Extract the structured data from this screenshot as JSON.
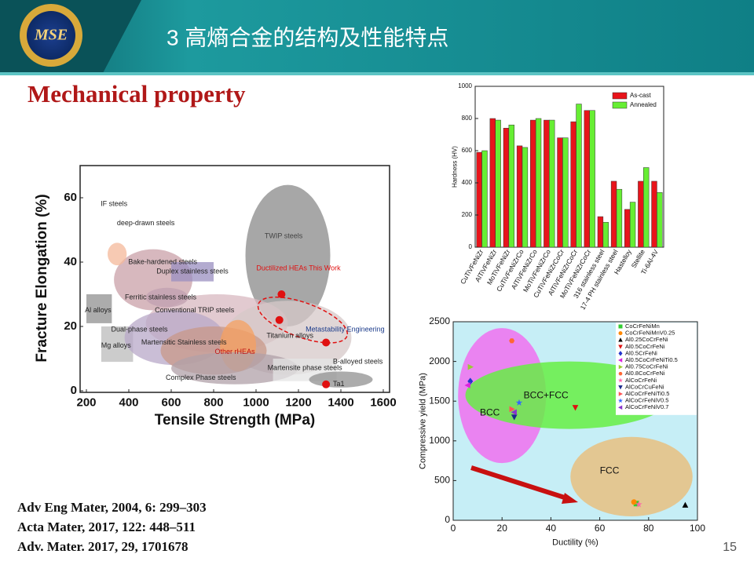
{
  "header": {
    "logo": "MSE",
    "title": "3 高熵合金的结构及性能特点"
  },
  "subtitle": "Mechanical property",
  "references": [
    "Adv Eng Mater, 2004, 6: 299–303",
    "Acta Mater, 2017, 122: 448–511",
    "Adv. Mater. 2017, 29, 1701678"
  ],
  "page_number": "15",
  "chart_data": [
    {
      "type": "region-map",
      "xlabel": "Tensile Strength (MPa)",
      "ylabel": "Fracture Elongation (%)",
      "xlim": [
        200,
        1600
      ],
      "xticks": [
        200,
        400,
        600,
        800,
        1000,
        1200,
        1400,
        1600
      ],
      "ylim": [
        0,
        70
      ],
      "yticks": [
        0,
        20,
        40,
        60
      ],
      "regions": [
        {
          "shape": "ellipse",
          "x": [
            950,
            1350
          ],
          "y": [
            20,
            64
          ],
          "color": "#8a8a8a"
        },
        {
          "shape": "ellipse",
          "x": [
            330,
            700
          ],
          "y": [
            25,
            44
          ],
          "color": "#c9a0a8"
        },
        {
          "shape": "ellipse",
          "x": [
            300,
            390
          ],
          "y": [
            39,
            46
          ],
          "color": "#f4b89a"
        },
        {
          "shape": "ellipse",
          "x": [
            480,
            1150
          ],
          "y": [
            12,
            30
          ],
          "color": "#d8b8c0"
        },
        {
          "shape": "ellipse",
          "x": [
            480,
            680
          ],
          "y": [
            26,
            32
          ],
          "color": "#c0a0b0"
        },
        {
          "shape": "rect",
          "x": [
            600,
            800
          ],
          "y": [
            34,
            40
          ],
          "color": "#9a8fc0"
        },
        {
          "shape": "rect",
          "x": [
            200,
            320
          ],
          "y": [
            21,
            30
          ],
          "color": "#909090"
        },
        {
          "shape": "rect",
          "x": [
            270,
            420
          ],
          "y": [
            9,
            20
          ],
          "color": "#bbbbbb"
        },
        {
          "shape": "ellipse",
          "x": [
            380,
            850
          ],
          "y": [
            8,
            25
          ],
          "color": "#b8a8c8"
        },
        {
          "shape": "ellipse",
          "x": [
            850,
            1450
          ],
          "y": [
            5,
            28
          ],
          "color": "#d6c8c8"
        },
        {
          "shape": "ellipse",
          "x": [
            550,
            1050
          ],
          "y": [
            5,
            20
          ],
          "color": "#c89888"
        },
        {
          "shape": "ellipse",
          "x": [
            830,
            1000
          ],
          "y": [
            6,
            22
          ],
          "color": "#f5a060"
        },
        {
          "shape": "ellipse",
          "x": [
            600,
            1200
          ],
          "y": [
            2,
            12
          ],
          "color": "#b0a0a8"
        },
        {
          "shape": "rect",
          "x": [
            1080,
            1380
          ],
          "y": [
            3,
            10
          ],
          "color": "#e4e4e4"
        },
        {
          "shape": "ellipse",
          "x": [
            1250,
            1550
          ],
          "y": [
            1,
            6
          ],
          "color": "#909090"
        }
      ],
      "points": {
        "x": [
          1120,
          1110,
          1330,
          1330
        ],
        "y": [
          30,
          22,
          15,
          2
        ],
        "color": "#e01010"
      },
      "annotations": [
        {
          "text": "IF steels",
          "x": 330,
          "y": 58,
          "color": "#222"
        },
        {
          "text": "deep-drawn steels",
          "x": 480,
          "y": 52,
          "color": "#222"
        },
        {
          "text": "Bake-hardened steels",
          "x": 560,
          "y": 40,
          "color": "#222"
        },
        {
          "text": "Duplex stainless steels",
          "x": 700,
          "y": 37,
          "color": "#222"
        },
        {
          "text": "Ferritic stainless steels",
          "x": 550,
          "y": 29,
          "color": "#222"
        },
        {
          "text": "Al alloys",
          "x": 255,
          "y": 25,
          "color": "#222"
        },
        {
          "text": "Mg alloys",
          "x": 340,
          "y": 14,
          "color": "#222"
        },
        {
          "text": "Conventional TRIP steels",
          "x": 710,
          "y": 25,
          "color": "#222"
        },
        {
          "text": "Dual-phase steels",
          "x": 450,
          "y": 19,
          "color": "#222"
        },
        {
          "text": "Martensitic Stainless steels",
          "x": 660,
          "y": 15,
          "color": "#222"
        },
        {
          "text": "Other rHEAs",
          "x": 900,
          "y": 12,
          "color": "#c01010"
        },
        {
          "text": "Titanium alloys",
          "x": 1160,
          "y": 17,
          "color": "#222"
        },
        {
          "text": "TWIP steels",
          "x": 1130,
          "y": 48,
          "color": "#444"
        },
        {
          "text": "Ductilized HEAs This Work",
          "x": 1200,
          "y": 38,
          "color": "#e01010"
        },
        {
          "text": "Metastability Engineering",
          "x": 1420,
          "y": 19,
          "color": "#1a3a8a"
        },
        {
          "text": "Complex Phase steels",
          "x": 740,
          "y": 4,
          "color": "#222"
        },
        {
          "text": "Martensite phase steels",
          "x": 1230,
          "y": 7,
          "color": "#222"
        },
        {
          "text": "B-alloyed steels",
          "x": 1480,
          "y": 9,
          "color": "#222"
        },
        {
          "text": "Ta1",
          "x": 1390,
          "y": 2,
          "color": "#222"
        }
      ]
    },
    {
      "type": "bar",
      "ylabel": "Hardness (HV)",
      "categories": [
        "CuTiVFeNiZr",
        "AlTiVFeNiZr",
        "MoTiVFeNiZr",
        "CuTiVFeNiZrCo",
        "AlTiVFeNiZrCo",
        "MoTiVFeNiZrCo",
        "CuTiVFeNiZrCoCr",
        "AlTiVFeNiZrCoCr",
        "MoTiVFeNiZrCoCr",
        "316 stainless steel",
        "17-4 PH stainless steel",
        "Hastelloy",
        "Stellite",
        "Ti-6Al-4V"
      ],
      "series": [
        {
          "name": "As-cast",
          "color": "#e8141b",
          "values": [
            590,
            800,
            740,
            630,
            790,
            790,
            680,
            780,
            850,
            190,
            410,
            235,
            410,
            410
          ]
        },
        {
          "name": "Annealed",
          "color": "#66ee33",
          "values": [
            600,
            790,
            760,
            620,
            800,
            790,
            680,
            890,
            850,
            155,
            360,
            280,
            495,
            340
          ]
        }
      ],
      "ylim": [
        0,
        1000
      ],
      "yticks": [
        0,
        200,
        400,
        600,
        800,
        1000
      ]
    },
    {
      "type": "scatter",
      "xlabel": "Ductility (%)",
      "ylabel": "Compressive yield (MPa)",
      "xlim": [
        0,
        100
      ],
      "xticks": [
        0,
        20,
        40,
        60,
        80,
        100
      ],
      "ylim": [
        0,
        2500
      ],
      "yticks": [
        0,
        500,
        1000,
        1500,
        2000,
        2500
      ],
      "regions": [
        {
          "x": [
            2,
            38
          ],
          "y": [
            720,
            2420
          ],
          "color": "#f070f0"
        },
        {
          "x": [
            5,
            90
          ],
          "y": [
            1150,
            2000
          ],
          "color": "#66ee44"
        },
        {
          "x": [
            48,
            98
          ],
          "y": [
            50,
            1050
          ],
          "color": "#e8c080"
        }
      ],
      "annotations": [
        {
          "text": "BCC",
          "x": 15,
          "y": 1350
        },
        {
          "text": "BCC+FCC",
          "x": 38,
          "y": 1570
        },
        {
          "text": "FCC",
          "x": 64,
          "y": 620
        }
      ],
      "series": [
        {
          "name": "CoCrFeNiMn",
          "color": "#33cc33",
          "marker": "s",
          "x": [
            75
          ],
          "y": [
            210
          ]
        },
        {
          "name": "CoCrFeNiMnV0.25",
          "color": "#ff8800",
          "marker": "o",
          "x": [
            74
          ],
          "y": [
            230
          ]
        },
        {
          "name": "Al0.25CoCrFeNi",
          "color": "#000000",
          "marker": "^",
          "x": [
            95
          ],
          "y": [
            190
          ]
        },
        {
          "name": "Al0.5CoCrFeNi",
          "color": "#dd1111",
          "marker": "v",
          "x": [
            50
          ],
          "y": [
            1420
          ]
        },
        {
          "name": "Al0.5CrFeNi",
          "color": "#2233cc",
          "marker": "D",
          "x": [
            7
          ],
          "y": [
            1750
          ]
        },
        {
          "name": "Al0.5CoCrFeNiTi0.5",
          "color": "#dd22dd",
          "marker": "<",
          "x": [
            6
          ],
          "y": [
            1700
          ]
        },
        {
          "name": "Al0.75CoCrFeNi",
          "color": "#99cc33",
          "marker": ">",
          "x": [
            7
          ],
          "y": [
            1930
          ]
        },
        {
          "name": "Al0.8CoCrFeNi",
          "color": "#ff6633",
          "marker": "h",
          "x": [
            24
          ],
          "y": [
            2260
          ]
        },
        {
          "name": "AlCoCrFeNi",
          "color": "#ff66aa",
          "marker": "*",
          "x": [
            76
          ],
          "y": [
            200
          ]
        },
        {
          "name": "AlCoCrCuFeNi",
          "color": "#1a2a8a",
          "marker": "v",
          "x": [
            25
          ],
          "y": [
            1300
          ]
        },
        {
          "name": "AlCoCrFeNiTi0.5",
          "color": "#ff5555",
          "marker": ">",
          "x": [
            24
          ],
          "y": [
            1400
          ]
        },
        {
          "name": "AlCoCrFeNiV0.5",
          "color": "#3366ff",
          "marker": "*",
          "x": [
            27
          ],
          "y": [
            1480
          ]
        },
        {
          "name": "AlCoCrFeNiV0.7",
          "color": "#8833cc",
          "marker": "<",
          "x": [
            25
          ],
          "y": [
            1360
          ]
        }
      ]
    }
  ]
}
